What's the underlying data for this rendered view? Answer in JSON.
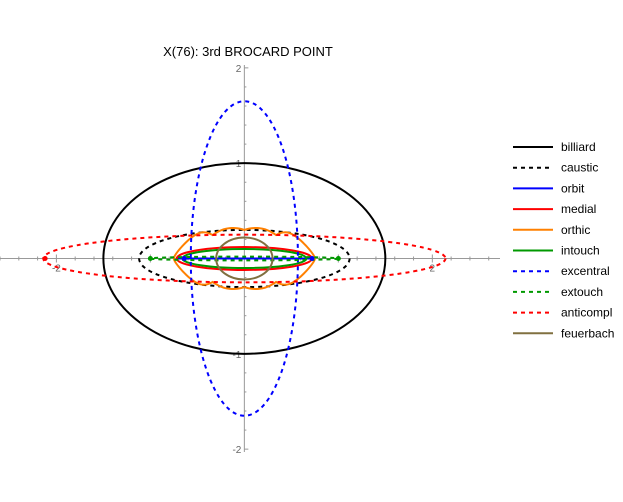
{
  "chart_data": {
    "type": "line",
    "title": "X(76): 3rd BROCARD POINT",
    "xlim": [
      -2.6,
      2.72
    ],
    "ylim": [
      -2.03,
      2.03
    ],
    "x_ticks": [
      {
        "value": -2,
        "label": "-2"
      },
      {
        "value": 2,
        "label": "2"
      }
    ],
    "y_ticks": [
      {
        "value": 2,
        "label": "2"
      },
      {
        "value": 1,
        "label": "1"
      },
      {
        "value": -1,
        "label": "-1"
      },
      {
        "value": -2,
        "label": "-2"
      }
    ],
    "grid": false,
    "legend_position": "right",
    "series": [
      {
        "name": "billiard",
        "color": "#000000",
        "dashed": false,
        "shape": "ellipse",
        "center": [
          0,
          0
        ],
        "rx": 1.5,
        "ry": 1.0
      },
      {
        "name": "caustic",
        "color": "#000000",
        "dashed": true,
        "shape": "ellipse",
        "center": [
          0,
          0
        ],
        "rx": 1.12,
        "ry": 0.3
      },
      {
        "name": "orbit",
        "color": "#0000ff",
        "dashed": false,
        "shape": "segment",
        "x": [
          -0.72,
          0.72
        ],
        "y": [
          0,
          0
        ]
      },
      {
        "name": "medial",
        "color": "#ff0000",
        "dashed": false,
        "shape": "ellipse",
        "center": [
          0,
          0
        ],
        "rx": 0.72,
        "ry": 0.12
      },
      {
        "name": "orthic",
        "color": "#ff8000",
        "dashed": false,
        "shape": "curve"
      },
      {
        "name": "intouch",
        "color": "#009900",
        "dashed": false,
        "shape": "ellipse",
        "center": [
          0,
          0
        ],
        "rx": 0.66,
        "ry": 0.1
      },
      {
        "name": "excentral",
        "color": "#0000ff",
        "dashed": true,
        "shape": "ellipse",
        "center": [
          0,
          0
        ],
        "rx": 0.57,
        "ry": 1.65
      },
      {
        "name": "extouch",
        "color": "#009900",
        "dashed": true,
        "shape": "ellipse",
        "center": [
          0,
          0
        ],
        "rx": 1.0,
        "ry": 0.02
      },
      {
        "name": "anticompl",
        "color": "#ff0000",
        "dashed": true,
        "shape": "ellipse",
        "center": [
          0,
          0
        ],
        "rx": 2.14,
        "ry": 0.25
      },
      {
        "name": "feuerbach",
        "color": "#807040",
        "dashed": false,
        "shape": "ellipse",
        "center": [
          0,
          0
        ],
        "rx": 0.3,
        "ry": 0.22
      }
    ],
    "points": [
      {
        "x": -2.12,
        "y": 0,
        "color": "#ff0000"
      },
      {
        "x": -1.0,
        "y": 0,
        "color": "#009900"
      },
      {
        "x": 1.0,
        "y": 0,
        "color": "#009900"
      },
      {
        "x": -0.64,
        "y": 0,
        "color": "#0000ff"
      },
      {
        "x": 0.72,
        "y": 0,
        "color": "#0000ff"
      }
    ]
  }
}
